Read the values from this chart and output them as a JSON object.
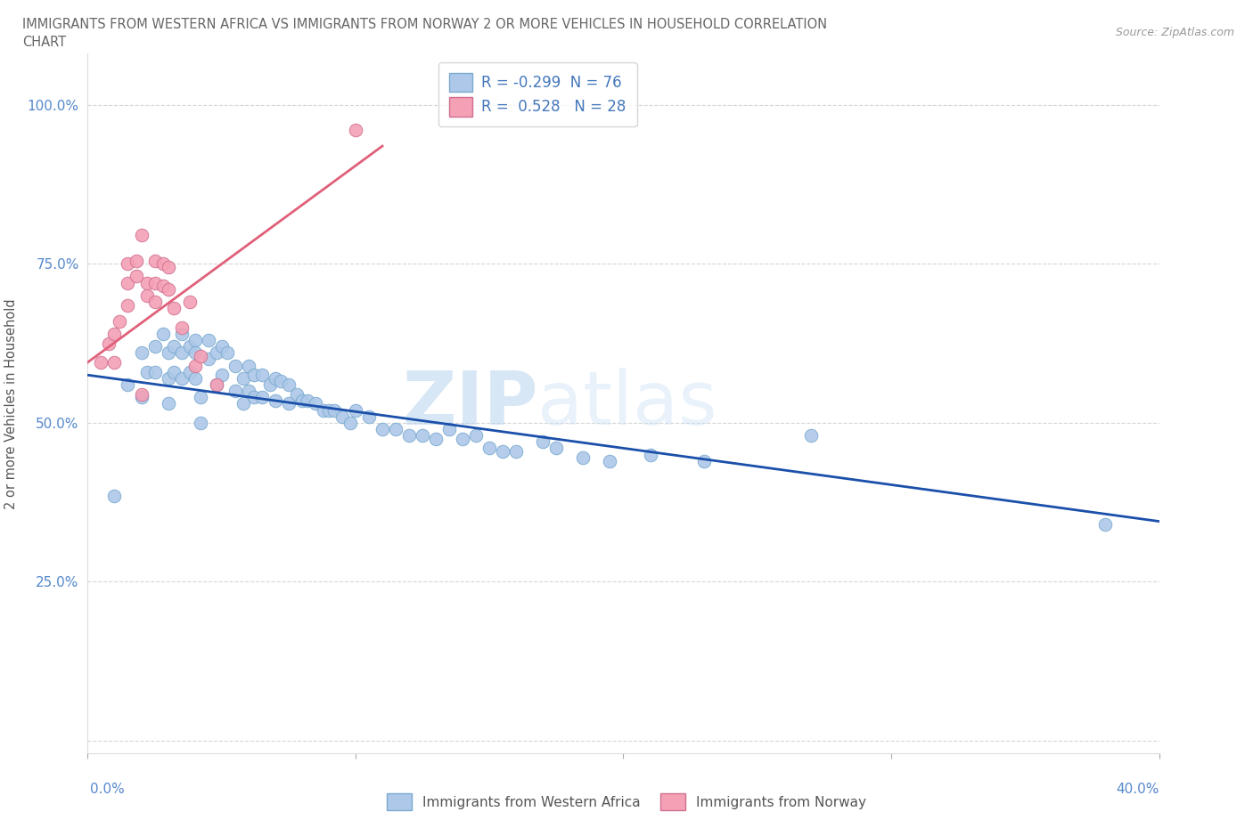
{
  "title_line1": "IMMIGRANTS FROM WESTERN AFRICA VS IMMIGRANTS FROM NORWAY 2 OR MORE VEHICLES IN HOUSEHOLD CORRELATION",
  "title_line2": "CHART",
  "source_text": "Source: ZipAtlas.com",
  "ylabel": "2 or more Vehicles in Household",
  "y_ticks": [
    0.0,
    0.25,
    0.5,
    0.75,
    1.0
  ],
  "y_tick_labels": [
    "",
    "25.0%",
    "50.0%",
    "75.0%",
    "100.0%"
  ],
  "x_lim": [
    0.0,
    0.4
  ],
  "y_lim": [
    -0.02,
    1.08
  ],
  "blue_R": -0.299,
  "blue_N": 76,
  "pink_R": 0.528,
  "pink_N": 28,
  "legend_label_blue": "Immigrants from Western Africa",
  "legend_label_pink": "Immigrants from Norway",
  "scatter_color_blue": "#adc8e8",
  "scatter_color_pink": "#f4a0b5",
  "line_color_blue": "#1a4faa",
  "line_color_pink": "#e0607a",
  "watermark_zip": "ZIP",
  "watermark_atlas": "atlas",
  "blue_x": [
    0.01,
    0.015,
    0.02,
    0.02,
    0.022,
    0.025,
    0.025,
    0.028,
    0.03,
    0.03,
    0.03,
    0.032,
    0.032,
    0.035,
    0.035,
    0.035,
    0.038,
    0.038,
    0.04,
    0.04,
    0.04,
    0.042,
    0.042,
    0.045,
    0.045,
    0.048,
    0.048,
    0.05,
    0.05,
    0.052,
    0.055,
    0.055,
    0.058,
    0.058,
    0.06,
    0.06,
    0.062,
    0.062,
    0.065,
    0.065,
    0.068,
    0.07,
    0.07,
    0.072,
    0.075,
    0.075,
    0.078,
    0.08,
    0.082,
    0.085,
    0.088,
    0.09,
    0.092,
    0.095,
    0.098,
    0.1,
    0.105,
    0.11,
    0.115,
    0.12,
    0.125,
    0.13,
    0.135,
    0.14,
    0.145,
    0.15,
    0.155,
    0.16,
    0.17,
    0.175,
    0.185,
    0.195,
    0.21,
    0.23,
    0.27,
    0.38
  ],
  "blue_y": [
    0.385,
    0.56,
    0.54,
    0.61,
    0.58,
    0.62,
    0.58,
    0.64,
    0.61,
    0.57,
    0.53,
    0.62,
    0.58,
    0.64,
    0.61,
    0.57,
    0.62,
    0.58,
    0.63,
    0.61,
    0.57,
    0.54,
    0.5,
    0.63,
    0.6,
    0.61,
    0.56,
    0.62,
    0.575,
    0.61,
    0.59,
    0.55,
    0.57,
    0.53,
    0.59,
    0.55,
    0.575,
    0.54,
    0.575,
    0.54,
    0.56,
    0.57,
    0.535,
    0.565,
    0.56,
    0.53,
    0.545,
    0.535,
    0.535,
    0.53,
    0.52,
    0.52,
    0.52,
    0.51,
    0.5,
    0.52,
    0.51,
    0.49,
    0.49,
    0.48,
    0.48,
    0.475,
    0.49,
    0.475,
    0.48,
    0.46,
    0.455,
    0.455,
    0.47,
    0.46,
    0.445,
    0.44,
    0.45,
    0.44,
    0.48,
    0.34
  ],
  "pink_x": [
    0.005,
    0.008,
    0.01,
    0.01,
    0.012,
    0.015,
    0.015,
    0.015,
    0.018,
    0.018,
    0.02,
    0.02,
    0.022,
    0.022,
    0.025,
    0.025,
    0.025,
    0.028,
    0.028,
    0.03,
    0.03,
    0.032,
    0.035,
    0.038,
    0.04,
    0.042,
    0.048,
    0.1
  ],
  "pink_y": [
    0.595,
    0.625,
    0.64,
    0.595,
    0.66,
    0.75,
    0.72,
    0.685,
    0.755,
    0.73,
    0.795,
    0.545,
    0.72,
    0.7,
    0.755,
    0.72,
    0.69,
    0.75,
    0.715,
    0.745,
    0.71,
    0.68,
    0.65,
    0.69,
    0.59,
    0.605,
    0.56,
    0.96
  ],
  "blue_trend_x": [
    0.0,
    0.4
  ],
  "blue_trend_y": [
    0.575,
    0.345
  ],
  "pink_trend_x": [
    0.0,
    0.11
  ],
  "pink_trend_y": [
    0.595,
    0.935
  ]
}
